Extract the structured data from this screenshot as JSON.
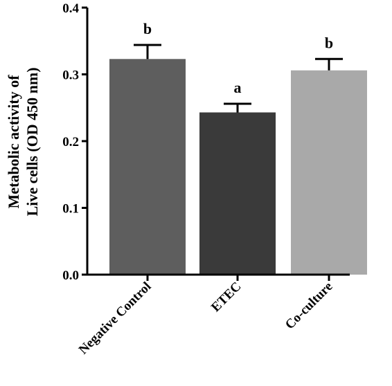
{
  "chart_data": {
    "type": "bar",
    "title": "",
    "xlabel": "",
    "ylabel_lines": [
      "Metabolic activity of",
      "Live cells (OD 450 nm)"
    ],
    "categories": [
      "Negative Control",
      "ETEC",
      "Co-culture"
    ],
    "values": [
      0.323,
      0.243,
      0.306
    ],
    "errors": [
      0.021,
      0.013,
      0.017
    ],
    "significance": [
      "b",
      "a",
      "b"
    ],
    "bar_colors": [
      "#5e5e5e",
      "#3a3a3a",
      "#a9a9a9"
    ],
    "ylim": [
      0,
      0.4
    ],
    "yticks": [
      0.0,
      0.1,
      0.2,
      0.3,
      0.4
    ],
    "ytick_labels": [
      "0.0",
      "0.1",
      "0.2",
      "0.3",
      "0.4"
    ],
    "grid": false,
    "legend": "none"
  }
}
